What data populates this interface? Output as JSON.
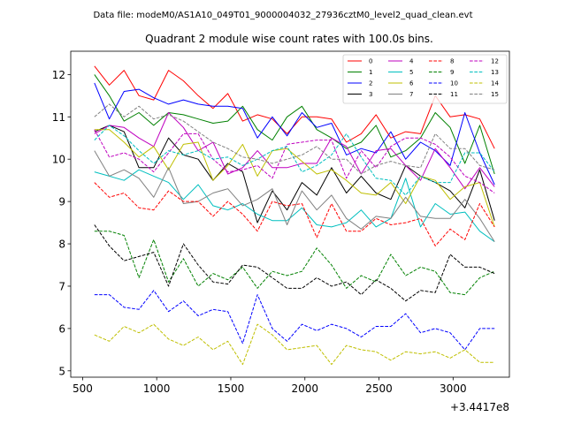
{
  "chart_data": {
    "type": "line",
    "suptitle": "Data file: modeM0/AS1A10_049T01_9000004032_27936cztM0_level2_quad_clean.evt",
    "title": "Quadrant 2 module wise count rates with 100.0s bins.",
    "xlabel": "",
    "ylabel": "",
    "x_offset_label": "+3.4417e8",
    "xlim": [
      420,
      3380
    ],
    "ylim": [
      4.85,
      12.55
    ],
    "x_ticks": [
      500,
      1000,
      1500,
      2000,
      2500,
      3000
    ],
    "y_ticks": [
      5,
      6,
      7,
      8,
      9,
      10,
      11,
      12
    ],
    "grid": false,
    "legend_position": "top-right",
    "x": [
      580,
      680,
      780,
      880,
      980,
      1080,
      1180,
      1280,
      1380,
      1480,
      1580,
      1680,
      1780,
      1880,
      1980,
      2080,
      2180,
      2280,
      2380,
      2480,
      2580,
      2680,
      2780,
      2880,
      2980,
      3080,
      3180,
      3280
    ],
    "series": [
      {
        "name": "0",
        "color": "#ff0000",
        "dash": "solid",
        "values": [
          12.2,
          11.75,
          12.1,
          11.5,
          11.4,
          12.1,
          11.85,
          11.5,
          11.2,
          11.55,
          10.9,
          11.05,
          10.95,
          10.6,
          11.0,
          11.0,
          10.95,
          10.4,
          10.6,
          11.05,
          10.5,
          10.65,
          10.6,
          11.5,
          11.0,
          11.05,
          10.95,
          10.25
        ]
      },
      {
        "name": "1",
        "color": "#008000",
        "dash": "solid",
        "values": [
          12.0,
          11.5,
          10.9,
          11.1,
          10.8,
          11.1,
          11.05,
          10.95,
          10.85,
          10.9,
          11.25,
          10.7,
          10.45,
          11.0,
          11.25,
          10.7,
          10.5,
          10.25,
          10.4,
          10.8,
          10.05,
          10.2,
          10.5,
          11.1,
          10.75,
          9.9,
          10.8,
          9.65
        ]
      },
      {
        "name": "2",
        "color": "#0000ff",
        "dash": "solid",
        "values": [
          11.8,
          10.95,
          11.6,
          11.65,
          11.45,
          11.3,
          11.4,
          11.3,
          11.25,
          11.25,
          11.2,
          10.5,
          11.0,
          10.55,
          11.1,
          10.75,
          10.85,
          10.1,
          10.25,
          10.15,
          10.65,
          10.0,
          10.4,
          10.2,
          9.85,
          11.1,
          10.15,
          9.4
        ]
      },
      {
        "name": "3",
        "color": "#000000",
        "dash": "solid",
        "values": [
          10.65,
          10.8,
          10.65,
          9.8,
          9.8,
          10.5,
          10.1,
          10.0,
          9.5,
          9.9,
          9.7,
          8.5,
          9.25,
          8.8,
          9.45,
          9.15,
          9.8,
          9.2,
          9.6,
          9.2,
          9.05,
          9.85,
          9.6,
          9.45,
          9.25,
          8.85,
          9.75,
          8.55
        ]
      },
      {
        "name": "4",
        "color": "#bf00bf",
        "dash": "solid",
        "values": [
          10.6,
          10.8,
          10.75,
          10.5,
          10.3,
          11.1,
          10.75,
          10.2,
          10.4,
          9.65,
          9.8,
          10.2,
          9.8,
          9.8,
          9.9,
          9.9,
          10.5,
          10.3,
          9.65,
          10.2,
          10.25,
          9.85,
          9.5,
          10.25,
          9.8,
          9.3,
          9.8,
          9.35
        ]
      },
      {
        "name": "5",
        "color": "#00bfbf",
        "dash": "solid",
        "values": [
          9.7,
          9.6,
          9.5,
          9.75,
          9.6,
          9.45,
          9.05,
          9.4,
          8.9,
          8.8,
          8.95,
          8.7,
          8.55,
          8.55,
          8.85,
          8.45,
          8.4,
          8.5,
          8.8,
          8.4,
          8.6,
          9.55,
          8.4,
          8.95,
          8.7,
          8.75,
          8.3,
          8.05
        ]
      },
      {
        "name": "6",
        "color": "#bfbf00",
        "dash": "solid",
        "values": [
          10.7,
          10.7,
          10.4,
          10.05,
          10.3,
          9.75,
          10.35,
          10.4,
          9.5,
          9.85,
          10.35,
          9.6,
          10.2,
          10.25,
          9.95,
          9.65,
          9.75,
          9.5,
          9.2,
          9.15,
          9.45,
          8.95,
          9.6,
          9.5,
          9.05,
          9.35,
          9.45,
          8.4
        ]
      },
      {
        "name": "7",
        "color": "#808080",
        "dash": "solid",
        "values": [
          10.2,
          9.6,
          9.75,
          9.55,
          9.1,
          9.8,
          8.95,
          9.0,
          9.2,
          9.3,
          8.9,
          9.05,
          9.3,
          8.45,
          9.25,
          8.8,
          9.15,
          8.6,
          8.35,
          8.65,
          8.6,
          9.1,
          8.65,
          8.6,
          8.6,
          9.05,
          8.6,
          8.05
        ]
      },
      {
        "name": "8",
        "color": "#ff0000",
        "dash": "dashed",
        "values": [
          9.45,
          9.1,
          9.2,
          8.85,
          8.8,
          9.25,
          9.0,
          9.0,
          8.65,
          9.0,
          8.7,
          8.3,
          9.0,
          8.9,
          8.95,
          8.15,
          8.95,
          8.3,
          8.3,
          8.6,
          8.45,
          8.5,
          8.6,
          7.95,
          8.35,
          8.1,
          8.95,
          8.4
        ]
      },
      {
        "name": "9",
        "color": "#008000",
        "dash": "dashed",
        "values": [
          8.3,
          8.3,
          8.2,
          7.2,
          8.1,
          7.1,
          7.65,
          7.0,
          7.3,
          7.15,
          7.45,
          6.95,
          7.35,
          7.25,
          7.35,
          7.9,
          7.5,
          6.95,
          7.25,
          7.1,
          7.75,
          7.25,
          7.45,
          7.35,
          6.85,
          6.8,
          7.2,
          7.35
        ]
      },
      {
        "name": "10",
        "color": "#0000ff",
        "dash": "dashed",
        "values": [
          6.8,
          6.8,
          6.5,
          6.45,
          6.9,
          6.4,
          6.65,
          6.3,
          6.45,
          6.4,
          5.65,
          6.8,
          6.0,
          5.7,
          6.1,
          5.95,
          6.1,
          6.0,
          5.8,
          6.05,
          6.05,
          6.35,
          5.9,
          6.0,
          5.9,
          5.5,
          6.0,
          6.0
        ]
      },
      {
        "name": "11",
        "color": "#000000",
        "dash": "dashed",
        "values": [
          8.45,
          7.95,
          7.6,
          7.7,
          7.8,
          7.0,
          8.0,
          7.5,
          7.1,
          7.05,
          7.5,
          7.45,
          7.2,
          6.95,
          6.95,
          7.2,
          7.0,
          7.1,
          6.8,
          7.15,
          6.95,
          6.65,
          6.9,
          6.85,
          7.75,
          7.45,
          7.45,
          7.3
        ]
      },
      {
        "name": "12",
        "color": "#bf00bf",
        "dash": "dashed",
        "values": [
          10.7,
          10.05,
          10.15,
          10.0,
          9.7,
          10.15,
          10.6,
          10.6,
          10.0,
          9.7,
          9.75,
          9.85,
          9.55,
          10.35,
          10.4,
          10.45,
          10.45,
          9.55,
          10.2,
          9.8,
          10.3,
          10.5,
          10.5,
          10.35,
          10.05,
          9.6,
          9.45,
          9.2
        ]
      },
      {
        "name": "13",
        "color": "#00bfbf",
        "dash": "dashed",
        "values": [
          10.45,
          10.8,
          10.55,
          10.2,
          9.9,
          10.2,
          10.1,
          10.2,
          10.0,
          10.05,
          9.85,
          10.0,
          10.2,
          10.3,
          9.7,
          9.85,
          10.1,
          10.6,
          10.05,
          9.55,
          9.5,
          9.15,
          9.6,
          9.45,
          9.45,
          10.15,
          10.15,
          9.7
        ]
      },
      {
        "name": "14",
        "color": "#bfbf00",
        "dash": "dashed",
        "values": [
          5.85,
          5.7,
          6.05,
          5.9,
          6.1,
          5.75,
          5.6,
          5.8,
          5.5,
          5.7,
          5.15,
          6.1,
          5.85,
          5.5,
          5.55,
          5.6,
          5.15,
          5.6,
          5.5,
          5.45,
          5.25,
          5.45,
          5.4,
          5.45,
          5.3,
          5.5,
          5.2,
          5.2
        ]
      },
      {
        "name": "15",
        "color": "#808080",
        "dash": "dashed",
        "values": [
          11.0,
          11.3,
          11.0,
          11.25,
          10.95,
          11.05,
          10.9,
          10.65,
          10.4,
          10.25,
          10.05,
          10.0,
          9.9,
          10.0,
          10.1,
          10.3,
          10.0,
          10.0,
          9.65,
          9.85,
          9.95,
          9.85,
          9.8,
          10.6,
          10.25,
          10.25,
          9.85,
          9.75
        ]
      }
    ]
  }
}
